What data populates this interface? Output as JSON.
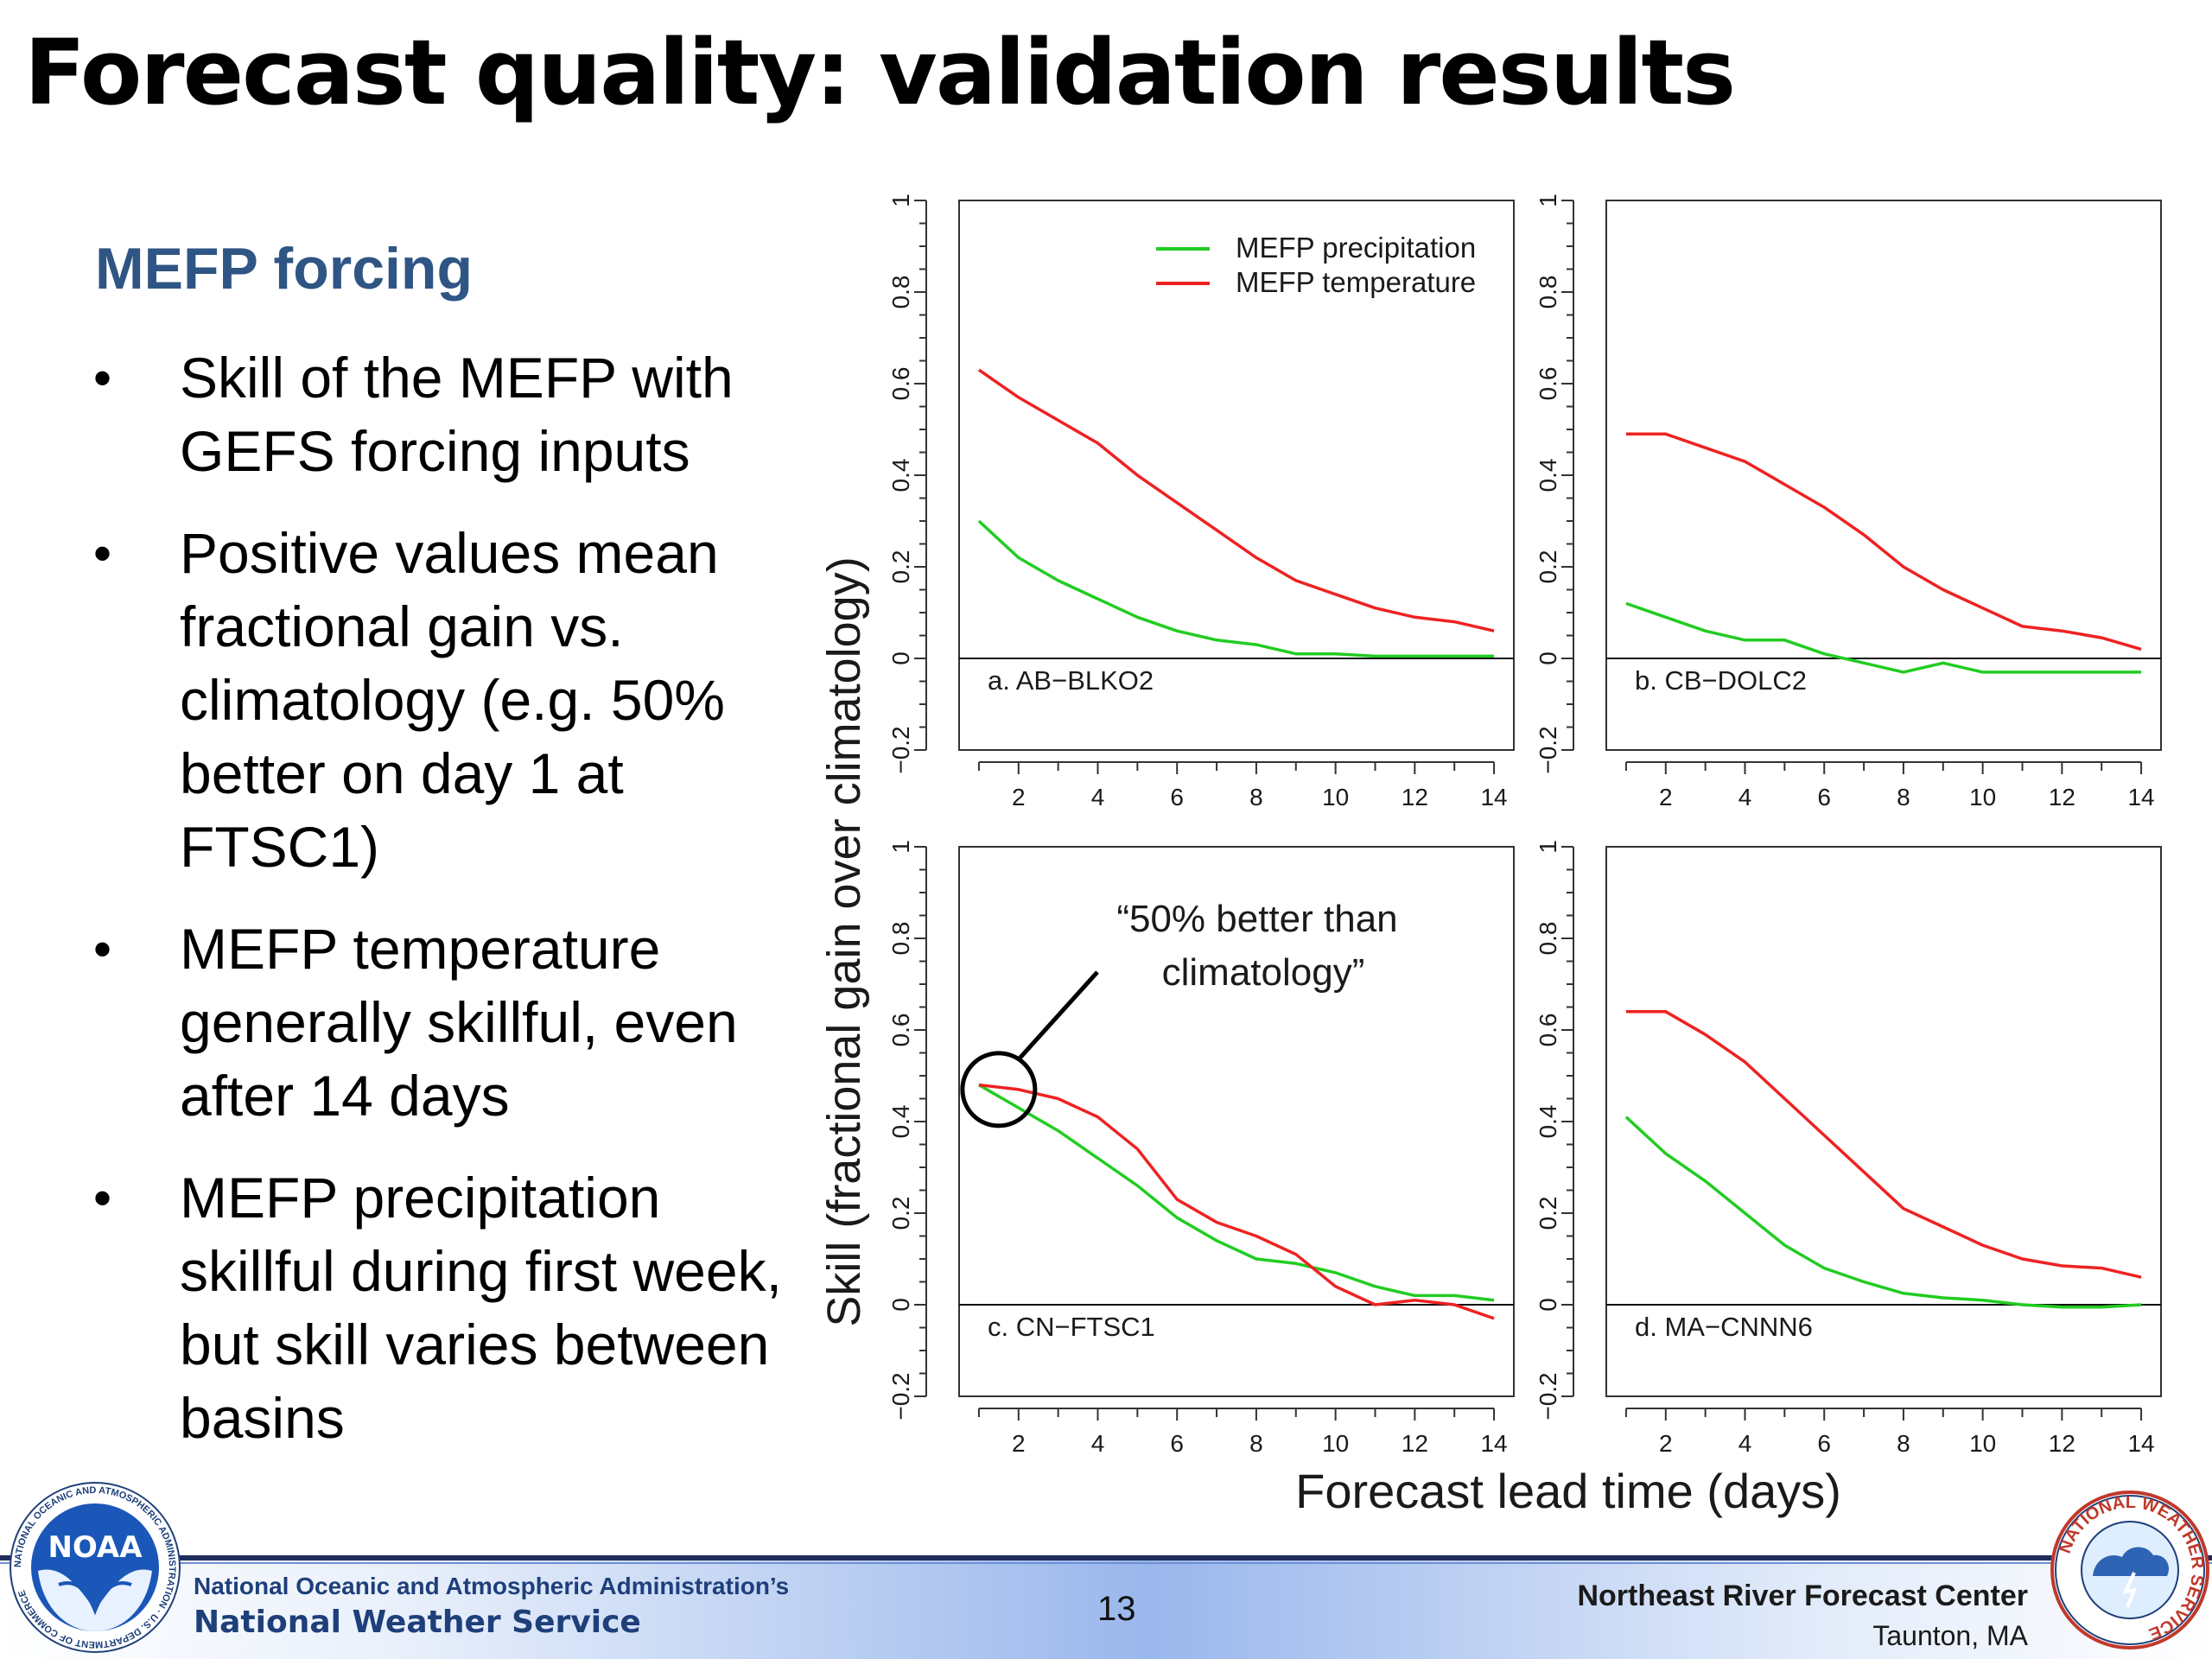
{
  "slide": {
    "title": "Forecast quality: validation results",
    "heading": "MEFP forcing",
    "bullet_symbol": "•",
    "bullets": [
      "Skill of the MEFP with GEFS forcing inputs",
      "Positive values mean fractional gain vs. climatology (e.g. 50% better on day 1 at FTSC1)",
      "MEFP temperature generally skillful, even after 14 days",
      "MEFP precipitation skillful during first week, but skill varies between basins"
    ]
  },
  "footer": {
    "agency_line1": "National Oceanic and Atmospheric Administration’s",
    "agency_line2": "National Weather Service",
    "page_number": "13",
    "center_name": "Northeast River Forecast Center",
    "center_city": "Taunton, MA",
    "noaa_logo_text": "NOAA",
    "noaa_ring_text": "NATIONAL OCEANIC AND ATMOSPHERIC ADMINISTRATION · U.S. DEPARTMENT OF COMMERCE",
    "nws_ring_text": "NATIONAL WEATHER SERVICE"
  },
  "chart_data": {
    "type": "line",
    "ylabel": "Skill (fractional gain over climatology)",
    "xlabel": "Forecast lead time (days)",
    "xlim": [
      0.5,
      14.5
    ],
    "ylim": [
      -0.2,
      1
    ],
    "x_ticks": [
      2,
      4,
      6,
      8,
      10,
      12,
      14
    ],
    "y_ticks": [
      -0.2,
      0,
      0.2,
      0.4,
      0.6,
      0.8,
      1
    ],
    "y_tick_labels": [
      "−0.2",
      "0",
      "0.2",
      "0.4",
      "0.6",
      "0.8",
      "1"
    ],
    "zero_line": true,
    "grid": false,
    "legend": {
      "panel": 0,
      "position": "top-right",
      "entries": [
        {
          "name": "MEFP precipitation",
          "color": "#22cc22"
        },
        {
          "name": "MEFP temperature",
          "color": "#ee2222"
        }
      ]
    },
    "x": [
      1,
      2,
      3,
      4,
      5,
      6,
      7,
      8,
      9,
      10,
      11,
      12,
      13,
      14
    ],
    "panels": [
      {
        "label": "a. AB−BLKO2",
        "series": [
          {
            "name": "MEFP precipitation",
            "color": "#22cc22",
            "values": [
              0.3,
              0.22,
              0.17,
              0.13,
              0.09,
              0.06,
              0.04,
              0.03,
              0.01,
              0.01,
              0.005,
              0.005,
              0.005,
              0.005
            ]
          },
          {
            "name": "MEFP temperature",
            "color": "#ee2222",
            "values": [
              0.63,
              0.57,
              0.52,
              0.47,
              0.4,
              0.34,
              0.28,
              0.22,
              0.17,
              0.14,
              0.11,
              0.09,
              0.08,
              0.06
            ]
          }
        ]
      },
      {
        "label": "b. CB−DOLC2",
        "series": [
          {
            "name": "MEFP precipitation",
            "color": "#22cc22",
            "values": [
              0.12,
              0.09,
              0.06,
              0.04,
              0.04,
              0.01,
              -0.01,
              -0.03,
              -0.01,
              -0.03,
              -0.03,
              -0.03,
              -0.03,
              -0.03
            ]
          },
          {
            "name": "MEFP temperature",
            "color": "#ee2222",
            "values": [
              0.49,
              0.49,
              0.46,
              0.43,
              0.38,
              0.33,
              0.27,
              0.2,
              0.15,
              0.11,
              0.07,
              0.06,
              0.045,
              0.02
            ]
          }
        ]
      },
      {
        "label": "c. CN−FTSC1",
        "annotation": "“50% better than climatology”",
        "annotation_point": [
          1.5,
          0.47
        ],
        "series": [
          {
            "name": "MEFP precipitation",
            "color": "#22cc22",
            "values": [
              0.48,
              0.43,
              0.38,
              0.32,
              0.26,
              0.19,
              0.14,
              0.1,
              0.09,
              0.07,
              0.04,
              0.02,
              0.02,
              0.01
            ]
          },
          {
            "name": "MEFP temperature",
            "color": "#ee2222",
            "values": [
              0.48,
              0.47,
              0.45,
              0.41,
              0.34,
              0.23,
              0.18,
              0.15,
              0.11,
              0.04,
              0.0,
              0.01,
              0.0,
              -0.03
            ]
          }
        ]
      },
      {
        "label": "d. MA−CNNN6",
        "series": [
          {
            "name": "MEFP precipitation",
            "color": "#22cc22",
            "values": [
              0.41,
              0.33,
              0.27,
              0.2,
              0.13,
              0.08,
              0.05,
              0.025,
              0.015,
              0.01,
              0.0,
              -0.005,
              -0.005,
              0.0
            ]
          },
          {
            "name": "MEFP temperature",
            "color": "#ee2222",
            "values": [
              0.64,
              0.64,
              0.59,
              0.53,
              0.45,
              0.37,
              0.29,
              0.21,
              0.17,
              0.13,
              0.1,
              0.085,
              0.08,
              0.06
            ]
          }
        ]
      }
    ]
  }
}
